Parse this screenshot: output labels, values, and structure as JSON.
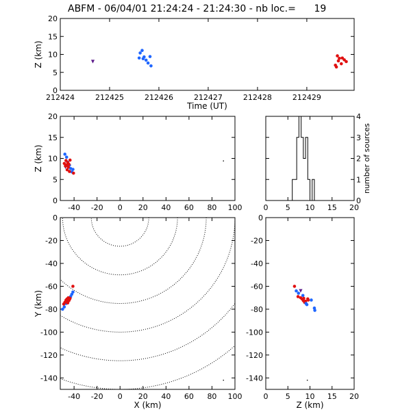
{
  "title": "ABFM - 06/04/01 21:24:24 - 21:24:30 - nb loc.=      19",
  "colors": {
    "early": "#1f66ff",
    "late": "#e01010",
    "mid": "#5b1a8a",
    "axis": "#000000"
  },
  "chart_data": [
    {
      "id": "time-z",
      "type": "scatter",
      "xlabel": "Time (UT)",
      "ylabel": "Z (km)",
      "xlim": [
        212424.0,
        212429.96
      ],
      "ylim": [
        0,
        20
      ],
      "xticks": [
        212424,
        212425,
        212426,
        212427,
        212428,
        212429
      ],
      "yticks": [
        0,
        5,
        10,
        15,
        20
      ],
      "points": [
        {
          "x": 212424.66,
          "y": 8.0,
          "c": "mid"
        },
        {
          "x": 212425.62,
          "y": 10.4,
          "c": "early"
        },
        {
          "x": 212425.66,
          "y": 11.1,
          "c": "early"
        },
        {
          "x": 212425.7,
          "y": 9.3,
          "c": "early"
        },
        {
          "x": 212425.6,
          "y": 9.0,
          "c": "early"
        },
        {
          "x": 212425.74,
          "y": 8.4,
          "c": "early"
        },
        {
          "x": 212425.78,
          "y": 7.6,
          "c": "early"
        },
        {
          "x": 212425.82,
          "y": 9.4,
          "c": "early"
        },
        {
          "x": 212425.84,
          "y": 6.8,
          "c": "early"
        },
        {
          "x": 212425.68,
          "y": 8.8,
          "c": "early"
        },
        {
          "x": 212429.58,
          "y": 7.0,
          "c": "late"
        },
        {
          "x": 212429.62,
          "y": 9.6,
          "c": "late"
        },
        {
          "x": 212429.64,
          "y": 8.2,
          "c": "late"
        },
        {
          "x": 212429.66,
          "y": 8.9,
          "c": "late"
        },
        {
          "x": 212429.7,
          "y": 7.4,
          "c": "late"
        },
        {
          "x": 212429.72,
          "y": 9.0,
          "c": "late"
        },
        {
          "x": 212429.76,
          "y": 8.5,
          "c": "late"
        },
        {
          "x": 212429.8,
          "y": 8.0,
          "c": "late"
        },
        {
          "x": 212429.6,
          "y": 6.5,
          "c": "late"
        }
      ]
    },
    {
      "id": "x-z",
      "type": "scatter",
      "xlabel": "",
      "ylabel": "Z (km)",
      "xlim": [
        -52,
        100
      ],
      "ylim": [
        0,
        20
      ],
      "xticks": [
        -40,
        -20,
        0,
        20,
        40,
        60,
        80,
        100
      ],
      "yticks": [
        0,
        5,
        10,
        15,
        20
      ],
      "extra_points": [
        {
          "x": 90,
          "y": 9.4
        }
      ],
      "points": [
        {
          "x": -48.0,
          "y": 11.0,
          "c": "early"
        },
        {
          "x": -46.5,
          "y": 10.3,
          "c": "early"
        },
        {
          "x": -45.5,
          "y": 9.1,
          "c": "early"
        },
        {
          "x": -44.0,
          "y": 8.4,
          "c": "early"
        },
        {
          "x": -43.0,
          "y": 7.6,
          "c": "early"
        },
        {
          "x": -42.0,
          "y": 6.8,
          "c": "early"
        },
        {
          "x": -41.0,
          "y": 7.4,
          "c": "early"
        },
        {
          "x": -47.5,
          "y": 7.9,
          "c": "mid"
        },
        {
          "x": -48.5,
          "y": 8.8,
          "c": "late"
        },
        {
          "x": -47.0,
          "y": 9.5,
          "c": "late"
        },
        {
          "x": -46.5,
          "y": 8.4,
          "c": "late"
        },
        {
          "x": -46.0,
          "y": 7.3,
          "c": "late"
        },
        {
          "x": -45.5,
          "y": 9.0,
          "c": "late"
        },
        {
          "x": -45.0,
          "y": 7.9,
          "c": "late"
        },
        {
          "x": -44.5,
          "y": 8.6,
          "c": "late"
        },
        {
          "x": -44.0,
          "y": 6.9,
          "c": "late"
        },
        {
          "x": -43.5,
          "y": 9.6,
          "c": "late"
        },
        {
          "x": -47.5,
          "y": 8.2,
          "c": "late"
        },
        {
          "x": -40.5,
          "y": 6.5,
          "c": "late"
        }
      ]
    },
    {
      "id": "z-histogram",
      "type": "bar",
      "ylabel": "number of sources",
      "xlim": [
        0,
        20
      ],
      "ylim": [
        0,
        4
      ],
      "xticks": [
        0,
        5,
        10,
        15,
        20
      ],
      "yticks": [
        0,
        1,
        2,
        3,
        4
      ],
      "bin_edges": [
        6.0,
        6.5,
        7.0,
        7.5,
        8.0,
        8.5,
        9.0,
        9.5,
        10.0,
        10.5,
        11.0
      ],
      "counts": [
        1,
        1,
        3,
        4,
        3,
        2,
        3,
        1,
        0,
        1
      ]
    },
    {
      "id": "x-y",
      "type": "scatter",
      "xlabel": "X (km)",
      "ylabel": "Y (km)",
      "xlim": [
        -52,
        100
      ],
      "ylim": [
        -150,
        0
      ],
      "xticks": [
        -40,
        -20,
        0,
        20,
        40,
        60,
        80,
        100
      ],
      "yticks": [
        0,
        -20,
        -40,
        -60,
        -80,
        -100,
        -120,
        -140
      ],
      "range_rings_km": [
        25,
        50,
        75,
        100,
        125,
        150
      ],
      "ring_center": [
        0,
        0
      ],
      "extra_points": [
        {
          "x": 90,
          "y": -142
        }
      ],
      "points": [
        {
          "x": -50.0,
          "y": -80.0,
          "c": "early"
        },
        {
          "x": -48.5,
          "y": -78.0,
          "c": "early"
        },
        {
          "x": -47.0,
          "y": -75.0,
          "c": "early"
        },
        {
          "x": -44.0,
          "y": -71.0,
          "c": "early"
        },
        {
          "x": -43.0,
          "y": -69.0,
          "c": "early"
        },
        {
          "x": -42.0,
          "y": -67.0,
          "c": "early"
        },
        {
          "x": -41.0,
          "y": -65.0,
          "c": "early"
        },
        {
          "x": -46.0,
          "y": -73.0,
          "c": "mid"
        },
        {
          "x": -48.0,
          "y": -74.0,
          "c": "late"
        },
        {
          "x": -47.0,
          "y": -72.0,
          "c": "late"
        },
        {
          "x": -46.0,
          "y": -71.0,
          "c": "late"
        },
        {
          "x": -45.5,
          "y": -74.5,
          "c": "late"
        },
        {
          "x": -45.0,
          "y": -70.0,
          "c": "late"
        },
        {
          "x": -44.5,
          "y": -72.5,
          "c": "late"
        },
        {
          "x": -44.0,
          "y": -71.5,
          "c": "late"
        },
        {
          "x": -43.5,
          "y": -70.5,
          "c": "late"
        },
        {
          "x": -47.5,
          "y": -73.5,
          "c": "late"
        },
        {
          "x": -49.0,
          "y": -75.5,
          "c": "late"
        },
        {
          "x": -41.0,
          "y": -60.0,
          "c": "late"
        }
      ]
    },
    {
      "id": "z-y",
      "type": "scatter",
      "xlabel": "Z (km)",
      "ylabel": "",
      "xlim": [
        0,
        20
      ],
      "ylim": [
        -150,
        0
      ],
      "xticks": [
        0,
        5,
        10,
        15,
        20
      ],
      "yticks": [
        0,
        -20,
        -40,
        -60,
        -80,
        -100,
        -120,
        -140
      ],
      "extra_points": [
        {
          "x": 9.4,
          "y": -142
        }
      ],
      "points": [
        {
          "x": 6.5,
          "y": -60.0,
          "c": "late"
        },
        {
          "x": 6.9,
          "y": -64.0,
          "c": "early"
        },
        {
          "x": 7.4,
          "y": -66.0,
          "c": "early"
        },
        {
          "x": 7.9,
          "y": -64.0,
          "c": "mid"
        },
        {
          "x": 7.3,
          "y": -69.0,
          "c": "late"
        },
        {
          "x": 7.9,
          "y": -70.0,
          "c": "late"
        },
        {
          "x": 8.2,
          "y": -71.0,
          "c": "late"
        },
        {
          "x": 8.4,
          "y": -68.0,
          "c": "early"
        },
        {
          "x": 8.5,
          "y": -72.5,
          "c": "late"
        },
        {
          "x": 8.6,
          "y": -70.5,
          "c": "late"
        },
        {
          "x": 8.8,
          "y": -74.0,
          "c": "late"
        },
        {
          "x": 9.0,
          "y": -73.0,
          "c": "late"
        },
        {
          "x": 9.1,
          "y": -75.0,
          "c": "early"
        },
        {
          "x": 9.5,
          "y": -71.0,
          "c": "late"
        },
        {
          "x": 9.6,
          "y": -72.0,
          "c": "late"
        },
        {
          "x": 10.3,
          "y": -72.0,
          "c": "early"
        },
        {
          "x": 11.0,
          "y": -79.0,
          "c": "early"
        },
        {
          "x": 11.1,
          "y": -81.0,
          "c": "early"
        },
        {
          "x": 9.3,
          "y": -76.0,
          "c": "early"
        }
      ]
    }
  ]
}
